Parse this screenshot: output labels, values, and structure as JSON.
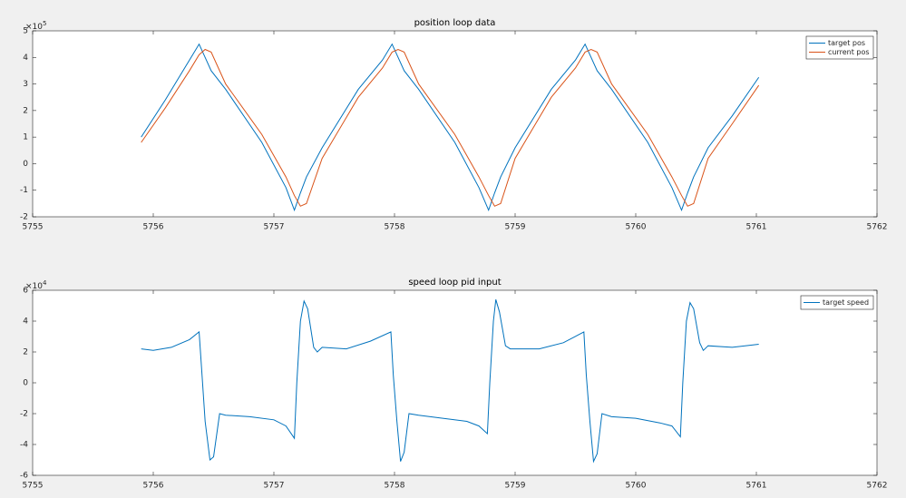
{
  "chart_data": [
    {
      "type": "line",
      "title": "position loop data",
      "y_multiplier_label": "×10",
      "y_multiplier_exponent": 5,
      "xlim": [
        5755,
        5762
      ],
      "xticks": [
        5755,
        5756,
        5757,
        5758,
        5759,
        5760,
        5761,
        5762
      ],
      "ylim": [
        -2,
        5
      ],
      "yticks": [
        -2,
        -1,
        0,
        1,
        2,
        3,
        4,
        5
      ],
      "grid": false,
      "legend": "top-right",
      "x": [
        5755.9,
        5756.1,
        5756.3,
        5756.38,
        5756.43,
        5756.48,
        5756.6,
        5756.9,
        5757.1,
        5757.17,
        5757.22,
        5757.27,
        5757.4,
        5757.7,
        5757.9,
        5757.98,
        5758.03,
        5758.08,
        5758.2,
        5758.5,
        5758.7,
        5758.78,
        5758.83,
        5758.88,
        5759.0,
        5759.3,
        5759.5,
        5759.58,
        5759.63,
        5759.68,
        5759.8,
        5760.1,
        5760.3,
        5760.38,
        5760.43,
        5760.48,
        5760.6,
        5760.8,
        5761.02
      ],
      "series": [
        {
          "name": "target pos",
          "color": "#0072bd",
          "values": [
            1.0,
            2.4,
            3.9,
            4.5,
            4.0,
            3.5,
            2.8,
            0.8,
            -0.9,
            -1.75,
            -1.1,
            -0.5,
            0.6,
            2.8,
            3.9,
            4.5,
            4.0,
            3.5,
            2.8,
            0.8,
            -0.9,
            -1.75,
            -1.1,
            -0.5,
            0.6,
            2.8,
            3.9,
            4.5,
            4.0,
            3.5,
            2.8,
            0.8,
            -0.9,
            -1.75,
            -1.1,
            -0.5,
            0.6,
            1.8,
            3.25
          ]
        },
        {
          "name": "current pos",
          "color": "#d95319",
          "values": [
            0.8,
            2.1,
            3.5,
            4.1,
            4.3,
            4.2,
            3.0,
            1.1,
            -0.5,
            -1.2,
            -1.6,
            -1.5,
            0.2,
            2.5,
            3.6,
            4.2,
            4.3,
            4.2,
            3.0,
            1.1,
            -0.5,
            -1.2,
            -1.6,
            -1.5,
            0.2,
            2.5,
            3.6,
            4.2,
            4.3,
            4.2,
            3.0,
            1.1,
            -0.5,
            -1.2,
            -1.6,
            -1.5,
            0.2,
            1.5,
            2.95
          ]
        }
      ]
    },
    {
      "type": "line",
      "title": "speed loop pid input",
      "y_multiplier_label": "×10",
      "y_multiplier_exponent": 4,
      "xlim": [
        5755,
        5762
      ],
      "xticks": [
        5755,
        5756,
        5757,
        5758,
        5759,
        5760,
        5761,
        5762
      ],
      "ylim": [
        -6,
        6
      ],
      "yticks": [
        -6,
        -4,
        -2,
        0,
        2,
        4,
        6
      ],
      "grid": false,
      "legend": "top-right",
      "x": [
        5755.9,
        5756.0,
        5756.15,
        5756.3,
        5756.38,
        5756.4,
        5756.43,
        5756.47,
        5756.5,
        5756.55,
        5756.6,
        5756.8,
        5757.0,
        5757.1,
        5757.17,
        5757.19,
        5757.22,
        5757.25,
        5757.28,
        5757.33,
        5757.36,
        5757.4,
        5757.6,
        5757.8,
        5757.97,
        5757.99,
        5758.02,
        5758.05,
        5758.08,
        5758.12,
        5758.2,
        5758.4,
        5758.6,
        5758.7,
        5758.77,
        5758.79,
        5758.82,
        5758.84,
        5758.87,
        5758.92,
        5758.96,
        5759.2,
        5759.4,
        5759.57,
        5759.59,
        5759.62,
        5759.65,
        5759.68,
        5759.72,
        5759.8,
        5760.0,
        5760.2,
        5760.3,
        5760.37,
        5760.39,
        5760.42,
        5760.45,
        5760.48,
        5760.53,
        5760.56,
        5760.6,
        5760.8,
        5761.02
      ],
      "series": [
        {
          "name": "target speed",
          "color": "#0072bd",
          "values": [
            2.2,
            2.1,
            2.3,
            2.8,
            3.3,
            1.0,
            -2.5,
            -5.0,
            -4.8,
            -2.0,
            -2.1,
            -2.2,
            -2.4,
            -2.8,
            -3.6,
            0.0,
            4.0,
            5.3,
            4.8,
            2.3,
            2.0,
            2.3,
            2.2,
            2.7,
            3.3,
            0.5,
            -2.5,
            -5.1,
            -4.5,
            -2.0,
            -2.1,
            -2.3,
            -2.5,
            -2.8,
            -3.3,
            0.0,
            4.0,
            5.4,
            4.6,
            2.4,
            2.2,
            2.2,
            2.6,
            3.3,
            0.5,
            -2.5,
            -5.1,
            -4.6,
            -2.0,
            -2.2,
            -2.3,
            -2.6,
            -2.8,
            -3.5,
            0.0,
            4.0,
            5.2,
            4.8,
            2.6,
            2.1,
            2.4,
            2.3,
            2.5
          ]
        }
      ]
    }
  ]
}
